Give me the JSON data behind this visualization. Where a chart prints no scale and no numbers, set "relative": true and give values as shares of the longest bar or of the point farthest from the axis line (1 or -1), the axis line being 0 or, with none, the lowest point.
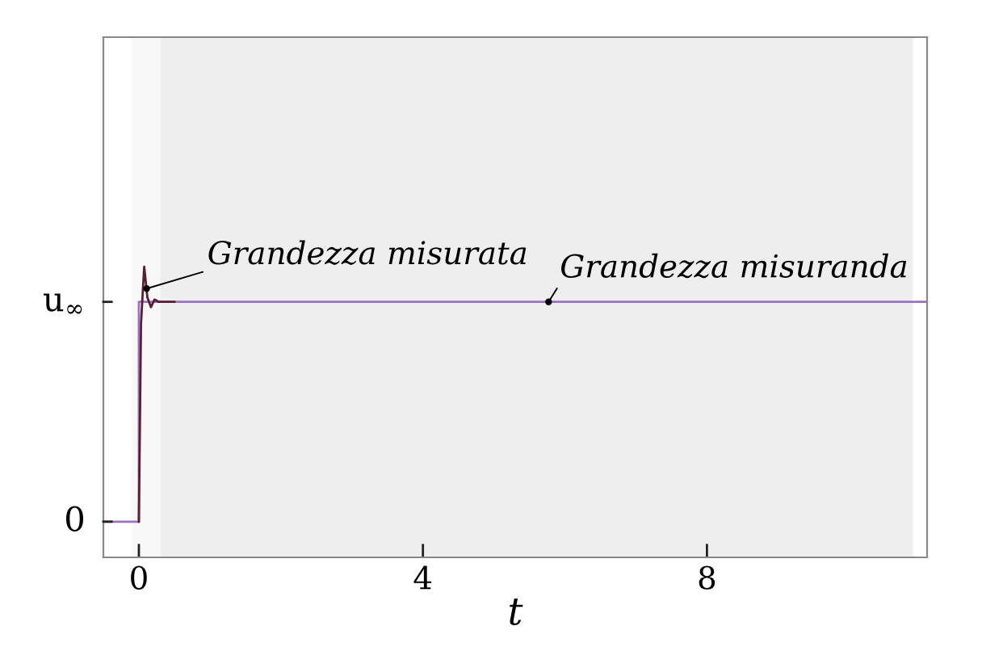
{
  "chart_data": {
    "type": "line",
    "xlabel": "t",
    "relative": true,
    "xlim": [
      -0.5,
      11.1
    ],
    "xticks": [
      0,
      4,
      8
    ],
    "series": [
      {
        "color": "#9b72c2",
        "x": [
          -0.5,
          0,
          0,
          11.1
        ],
        "values": [
          0,
          0,
          0.862,
          0.862
        ]
      },
      {
        "color": "#5a1f2e",
        "x": [
          0,
          0.03,
          0.075,
          0.12,
          0.17,
          0.22,
          0.28,
          0.5
        ],
        "values": [
          0,
          0.776,
          1,
          0.879,
          0.841,
          0.871,
          0.862,
          0.862
        ]
      }
    ],
    "bands": [
      {
        "axis": "x",
        "from": -0.1,
        "to": 0.3,
        "color": "#f8f8f8"
      },
      {
        "axis": "x",
        "from": 0.3,
        "to": 10.9,
        "color": "#eeeeee"
      }
    ],
    "annotations": [
      "0",
      "u$_{∞}$",
      {
        "text": "Grandezza misurata",
        "x": 0.11,
        "y": 0.914
      },
      {
        "text": "Grandezza misuranda",
        "x": 5.77,
        "y": 0.862
      }
    ],
    "grid": false,
    "legend": false
  }
}
